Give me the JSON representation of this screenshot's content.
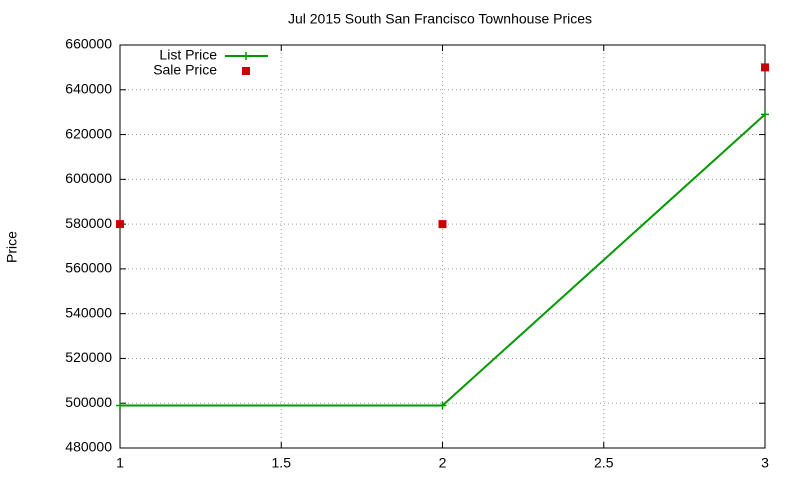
{
  "chart_data": {
    "type": "line",
    "title": "Jul 2015 South San Francisco Townhouse Prices",
    "y_label": "Price",
    "x": [
      1,
      2,
      3
    ],
    "series": [
      {
        "name": "List Price",
        "color": "#009900",
        "style": "linespoints",
        "values": [
          499000,
          499000,
          629000
        ]
      },
      {
        "name": "Sale Price",
        "color": "#cc0000",
        "style": "points",
        "values": [
          580000,
          580000,
          650000
        ]
      }
    ],
    "xlim": [
      1,
      3
    ],
    "xticks": [
      1,
      1.5,
      2,
      2.5,
      3
    ],
    "ylim": [
      480000,
      660000
    ],
    "yticks": [
      480000,
      500000,
      520000,
      540000,
      560000,
      580000,
      600000,
      620000,
      640000,
      660000
    ],
    "grid": true,
    "legend": "top-left"
  }
}
